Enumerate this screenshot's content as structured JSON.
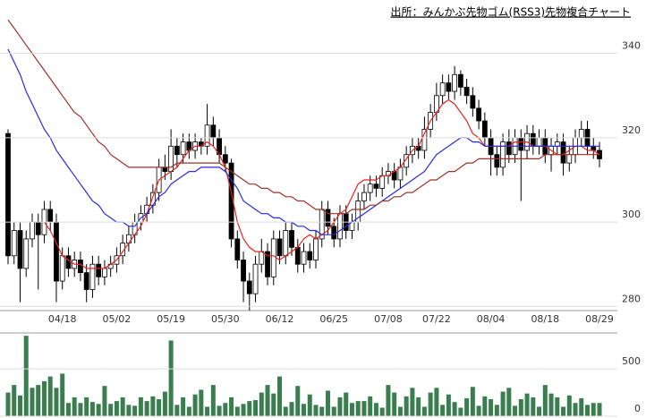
{
  "chart_data": [
    {
      "type": "candlestick",
      "title": "出所：みんかぶ先物ゴム(RSS3)先物複合チャート",
      "categories": [
        null,
        null,
        null,
        null,
        null,
        null,
        null,
        null,
        null,
        "04/18",
        null,
        null,
        null,
        null,
        null,
        null,
        null,
        null,
        "05/02",
        null,
        null,
        null,
        null,
        null,
        null,
        null,
        null,
        "05/19",
        null,
        null,
        null,
        null,
        null,
        null,
        null,
        null,
        "05/30",
        null,
        null,
        null,
        null,
        null,
        null,
        null,
        null,
        "06/12",
        null,
        null,
        null,
        null,
        null,
        null,
        null,
        null,
        "06/25",
        null,
        null,
        null,
        null,
        null,
        null,
        null,
        null,
        "07/08",
        null,
        null,
        null,
        null,
        null,
        null,
        null,
        "07/22",
        null,
        null,
        null,
        null,
        null,
        null,
        null,
        null,
        "08/04",
        null,
        null,
        null,
        null,
        null,
        null,
        null,
        null,
        "08/18",
        null,
        null,
        null,
        null,
        null,
        null,
        null,
        null,
        "08/29"
      ],
      "open": [
        321,
        292,
        298,
        289,
        296,
        300,
        297,
        303,
        300,
        286,
        292,
        289,
        291,
        288,
        284,
        290,
        287,
        289,
        290,
        292,
        295,
        297,
        300,
        302,
        304,
        307,
        313,
        312,
        318,
        316,
        319,
        317,
        319,
        318,
        323,
        320,
        316,
        314,
        296,
        291,
        286,
        283,
        290,
        293,
        287,
        296,
        292,
        298,
        294,
        290,
        293,
        291,
        296,
        303,
        299,
        296,
        302,
        298,
        300,
        305,
        307,
        309,
        308,
        311,
        312,
        310,
        313,
        316,
        318,
        317,
        322,
        326,
        330,
        333,
        331,
        335,
        332,
        330,
        327,
        324,
        320,
        316,
        313,
        319,
        316,
        320,
        317,
        321,
        318,
        320,
        316,
        318,
        319,
        314,
        316,
        320,
        322,
        318,
        317
      ],
      "high": [
        322,
        300,
        300,
        298,
        302,
        302,
        305,
        305,
        302,
        294,
        294,
        293,
        293,
        290,
        292,
        292,
        291,
        292,
        294,
        297,
        299,
        302,
        304,
        306,
        309,
        315,
        316,
        322,
        320,
        321,
        321,
        321,
        320,
        328,
        325,
        322,
        318,
        315,
        298,
        293,
        288,
        292,
        296,
        295,
        298,
        298,
        300,
        300,
        296,
        295,
        295,
        298,
        305,
        305,
        301,
        304,
        304,
        302,
        307,
        309,
        311,
        311,
        313,
        314,
        314,
        315,
        318,
        320,
        320,
        325,
        328,
        333,
        335,
        335,
        337,
        336,
        334,
        332,
        329,
        326,
        322,
        318,
        321,
        322,
        322,
        322,
        323,
        323,
        322,
        322,
        320,
        321,
        321,
        318,
        322,
        324,
        324,
        320,
        319
      ],
      "low": [
        290,
        290,
        281,
        287,
        294,
        284,
        295,
        298,
        281,
        284,
        287,
        287,
        286,
        281,
        282,
        285,
        285,
        287,
        288,
        290,
        293,
        295,
        298,
        300,
        302,
        305,
        310,
        310,
        313,
        314,
        315,
        315,
        316,
        316,
        318,
        314,
        312,
        294,
        289,
        281,
        279,
        281,
        288,
        285,
        285,
        290,
        290,
        292,
        288,
        288,
        289,
        289,
        294,
        297,
        294,
        294,
        296,
        296,
        298,
        303,
        305,
        306,
        306,
        309,
        308,
        308,
        311,
        314,
        315,
        315,
        320,
        324,
        328,
        329,
        329,
        330,
        328,
        325,
        322,
        318,
        311,
        311,
        311,
        314,
        314,
        305,
        315,
        316,
        316,
        314,
        312,
        316,
        311,
        312,
        314,
        318,
        316,
        315,
        313
      ],
      "close": [
        292,
        298,
        289,
        296,
        300,
        297,
        303,
        300,
        286,
        292,
        289,
        291,
        288,
        284,
        290,
        287,
        289,
        290,
        292,
        295,
        297,
        300,
        302,
        304,
        307,
        313,
        312,
        318,
        316,
        319,
        317,
        319,
        318,
        323,
        320,
        316,
        314,
        296,
        291,
        286,
        283,
        290,
        293,
        287,
        296,
        292,
        298,
        294,
        290,
        293,
        291,
        296,
        303,
        299,
        296,
        302,
        298,
        300,
        305,
        307,
        309,
        308,
        311,
        312,
        310,
        313,
        316,
        318,
        317,
        322,
        326,
        330,
        333,
        331,
        335,
        332,
        330,
        327,
        324,
        320,
        316,
        313,
        319,
        316,
        320,
        317,
        321,
        318,
        320,
        316,
        318,
        319,
        314,
        316,
        320,
        322,
        318,
        317,
        315
      ],
      "up_color": "#ffffff",
      "down_color": "#000000",
      "series": [
        {
          "color": "#e8221e",
          "values": [
            null,
            null,
            null,
            null,
            null,
            null,
            300,
            298,
            295,
            292,
            291,
            290,
            290,
            289,
            289,
            289,
            289,
            290,
            291,
            293,
            295,
            297,
            299,
            302,
            306,
            310,
            311,
            312,
            313,
            315,
            317,
            318,
            318,
            319,
            318,
            316,
            313,
            307,
            300,
            296,
            294,
            293,
            293,
            292,
            292,
            291,
            292,
            293,
            294,
            296,
            297,
            296,
            297,
            298,
            300,
            302,
            303,
            306,
            309,
            310,
            310,
            310,
            311,
            311,
            312,
            313,
            315,
            317,
            318,
            321,
            324,
            326,
            328,
            329,
            328,
            326,
            324,
            321,
            320,
            318,
            318,
            318,
            318,
            318,
            319,
            319,
            319,
            318,
            318,
            318,
            317,
            316,
            316,
            317,
            318,
            318,
            317,
            317,
            316
          ]
        },
        {
          "color": "#2a2ae0",
          "values": [
            341,
            338,
            335,
            331,
            328,
            325,
            322,
            320,
            317,
            315,
            313,
            311,
            309,
            307,
            305,
            304,
            302,
            301,
            300,
            300,
            299,
            299,
            301,
            302,
            304,
            306,
            307,
            309,
            310,
            311,
            312,
            312,
            313,
            313,
            313,
            313,
            312,
            310,
            308,
            305,
            304,
            303,
            302,
            302,
            301,
            301,
            300,
            300,
            299,
            299,
            298,
            298,
            297,
            297,
            297,
            298,
            299,
            300,
            301,
            302,
            303,
            304,
            305,
            306,
            307,
            308,
            309,
            310,
            311,
            312,
            314,
            316,
            317,
            318,
            319,
            320,
            320,
            319,
            319,
            318,
            318,
            318,
            318,
            318,
            318,
            318,
            318,
            318,
            318,
            318,
            318,
            318,
            318,
            318,
            318,
            318,
            318,
            318,
            318
          ]
        },
        {
          "color": "#a0302a",
          "values": [
            348,
            346,
            344,
            342,
            340,
            338,
            336,
            334,
            332,
            330,
            328,
            326,
            325,
            323,
            321,
            319,
            318,
            316,
            315,
            314,
            313,
            313,
            313,
            313,
            313,
            313,
            313,
            313,
            314,
            314,
            314,
            314,
            314,
            314,
            314,
            314,
            313,
            312,
            311,
            310,
            309,
            309,
            308,
            308,
            307,
            307,
            306,
            306,
            305,
            305,
            304,
            303,
            303,
            302,
            302,
            302,
            302,
            303,
            303,
            303,
            304,
            304,
            305,
            305,
            306,
            306,
            307,
            307,
            308,
            309,
            310,
            310,
            311,
            312,
            312,
            313,
            314,
            314,
            315,
            315,
            315,
            315,
            315,
            315,
            315,
            315,
            315,
            315,
            315,
            316,
            316,
            316,
            316,
            316,
            316,
            316,
            316,
            316,
            316
          ]
        }
      ],
      "ylim": [
        279,
        348
      ],
      "yticks": [
        280,
        300,
        320,
        340
      ],
      "grid": true
    },
    {
      "type": "bar",
      "color": "#3a7d4f",
      "values": [
        250,
        330,
        220,
        850,
        300,
        330,
        370,
        420,
        300,
        450,
        140,
        200,
        140,
        200,
        150,
        130,
        320,
        130,
        160,
        200,
        120,
        110,
        200,
        160,
        210,
        180,
        260,
        800,
        120,
        200,
        100,
        230,
        280,
        100,
        330,
        110,
        140,
        200,
        100,
        130,
        160,
        170,
        250,
        330,
        240,
        420,
        100,
        150,
        320,
        130,
        230,
        120,
        100,
        270,
        100,
        200,
        250,
        140,
        160,
        160,
        210,
        140,
        90,
        330,
        250,
        100,
        210,
        300,
        200,
        100,
        250,
        300,
        120,
        230,
        150,
        90,
        190,
        310,
        110,
        210,
        180,
        120,
        260,
        300,
        110,
        180,
        240,
        200,
        100,
        330,
        240,
        200,
        100,
        220,
        140,
        190,
        120,
        140,
        140
      ],
      "ylim": [
        0,
        880
      ],
      "yticks": [
        0,
        500
      ],
      "grid": true
    }
  ]
}
